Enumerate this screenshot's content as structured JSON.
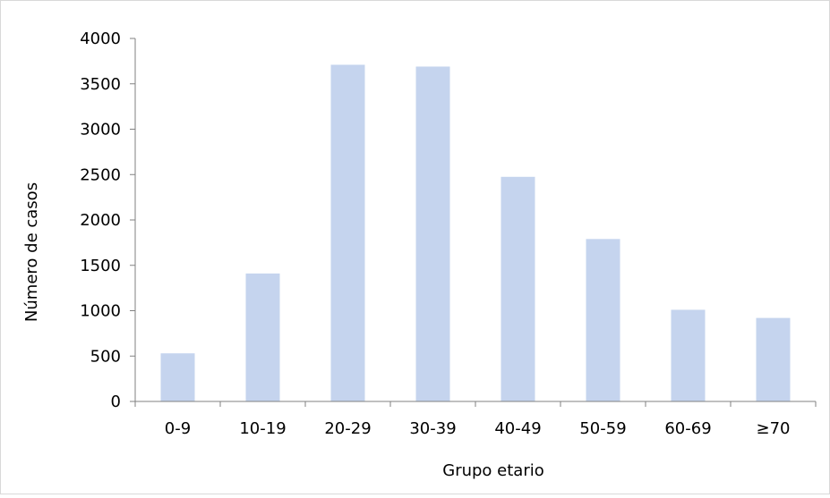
{
  "chart_data": {
    "type": "bar",
    "categories": [
      "0-9",
      "10-19",
      "20-29",
      "30-39",
      "40-49",
      "50-59",
      "60-69",
      "≥70"
    ],
    "values": [
      530,
      1410,
      3710,
      3690,
      2475,
      1790,
      1010,
      920
    ],
    "xlabel": "Grupo etario",
    "ylabel": "Número de casos",
    "ylim": [
      0,
      4000
    ],
    "yticks": [
      "0",
      "500",
      "1000",
      "1500",
      "2000",
      "2500",
      "3000",
      "3500",
      "4000"
    ],
    "grid": false,
    "legend": "none",
    "bar_color": "#c5d4ee",
    "axis_color": "#808080"
  }
}
